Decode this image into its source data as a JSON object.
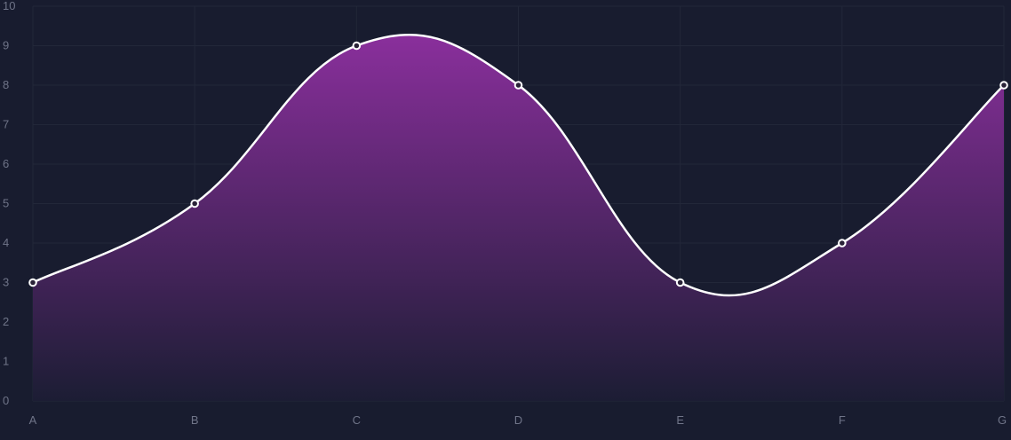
{
  "chart_data": {
    "type": "area",
    "categories": [
      "A",
      "B",
      "C",
      "D",
      "E",
      "F",
      "G"
    ],
    "series": [
      {
        "values": [
          3,
          5,
          9,
          8,
          3,
          4,
          8
        ]
      }
    ],
    "ylim": [
      0,
      10
    ],
    "yticks": [
      "0",
      "1",
      "2",
      "3",
      "4",
      "5",
      "6",
      "7",
      "8",
      "9",
      "10"
    ],
    "grid": true,
    "smooth": true,
    "colors": {
      "background": "#181c2f",
      "grid": "#222739",
      "line": "#ffffff",
      "fill_top": "#8a2f9c",
      "fill_bottom": "#1c1d34",
      "marker_fill": "#2a2338",
      "tick_label": "#6f7488"
    }
  }
}
